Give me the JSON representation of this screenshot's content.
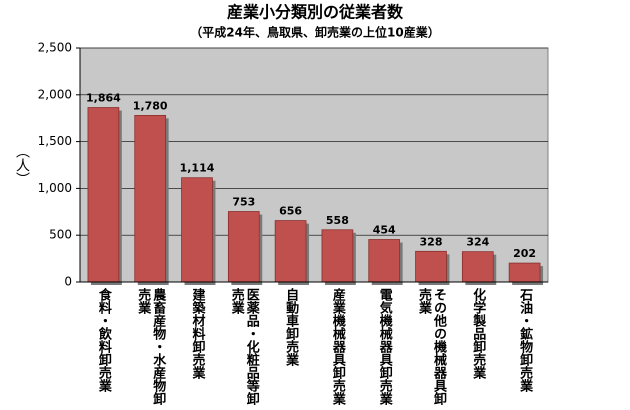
{
  "chart_data": {
    "type": "bar",
    "title": "産業小分類別の従業者数",
    "subtitle": "（平成24年、鳥取県、卸売業の上位10産業）",
    "y_label": "（人）",
    "categories": [
      "食料・飲料卸売業",
      "農畜産物・水産物卸売業",
      "建築材料卸売業",
      "医薬品・化粧品等卸売業",
      "自動車卸売業",
      "産業機械器具卸売業",
      "電気機械器具卸売業",
      "その他の機械器具卸売業",
      "化学製品卸売業",
      "石油・鉱物卸売業"
    ],
    "values": [
      1864,
      1780,
      1114,
      753,
      656,
      558,
      454,
      328,
      324,
      202
    ],
    "value_labels": [
      "1,864",
      "1,780",
      "1,114",
      "753",
      "656",
      "558",
      "454",
      "328",
      "324",
      "202"
    ],
    "color": "#c0504d",
    "ylim": [
      0,
      2500
    ],
    "yticks": [
      0,
      500,
      {
        "value": 1000,
        "label": "1,000"
      },
      {
        "value": 1500,
        "label": "1,500"
      },
      {
        "value": 2000,
        "label": "2,000"
      },
      {
        "value": 2500,
        "label": "2,500"
      }
    ],
    "grid": true
  }
}
